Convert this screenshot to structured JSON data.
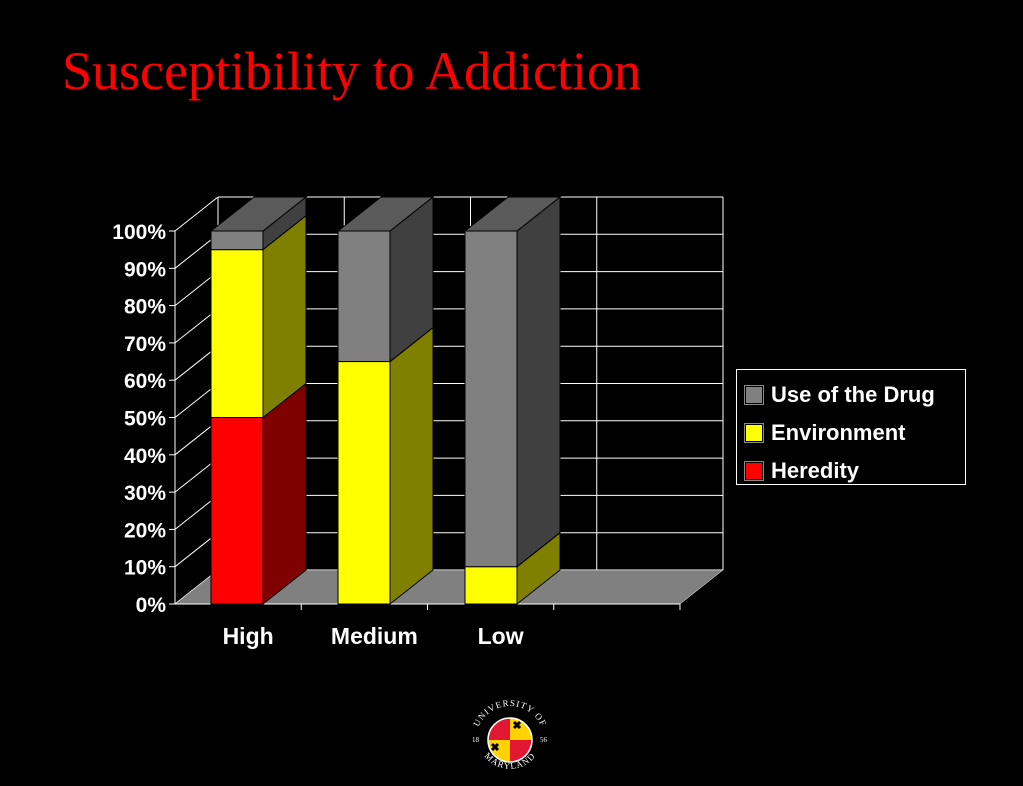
{
  "slide": {
    "title": "Susceptibility to Addiction"
  },
  "chart_data": {
    "type": "bar",
    "stacked": true,
    "three_d": true,
    "categories": [
      "High",
      "Medium",
      "Low"
    ],
    "series": [
      {
        "name": "Heredity",
        "values": [
          50,
          0,
          0
        ],
        "color": "#ff0000",
        "side_color": "#800000"
      },
      {
        "name": "Environment",
        "values": [
          45,
          65,
          10
        ],
        "color": "#ffff00",
        "side_color": "#808000"
      },
      {
        "name": "Use of the Drug",
        "values": [
          5,
          35,
          90
        ],
        "color": "#808080",
        "side_color": "#404040"
      }
    ],
    "y_ticks": [
      "0%",
      "10%",
      "20%",
      "30%",
      "40%",
      "50%",
      "60%",
      "70%",
      "80%",
      "90%",
      "100%"
    ],
    "ylim": [
      0,
      100
    ],
    "grid": true,
    "legend_position": "right",
    "legend_order": [
      "Use of the Drug",
      "Environment",
      "Heredity"
    ]
  },
  "logo": {
    "top_text": "UNIVERSITY OF",
    "bottom_text": "MARYLAND",
    "year_left": "18",
    "year_right": "56"
  }
}
